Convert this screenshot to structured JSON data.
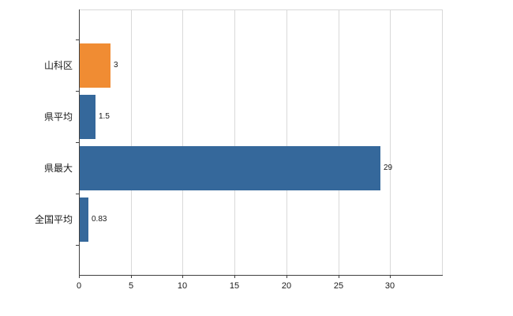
{
  "chart_data": {
    "type": "bar",
    "orientation": "horizontal",
    "title": "",
    "categories": [
      "山科区",
      "県平均",
      "県最大",
      "全国平均"
    ],
    "values": [
      3,
      1.5,
      29,
      0.83
    ],
    "value_labels": [
      "3",
      "1.5",
      "29",
      "0.83"
    ],
    "series_colors": [
      "#F08C33",
      "#35689B",
      "#35689B",
      "#35689B"
    ],
    "xlim": [
      0,
      35
    ],
    "xticks": [
      0,
      5,
      10,
      15,
      20,
      25,
      30
    ],
    "xtick_labels": [
      "0",
      "5",
      "10",
      "15",
      "20",
      "25",
      "30"
    ],
    "grid": true,
    "legend": false
  },
  "colors": {
    "bar_blue": "#35689B",
    "bar_orange": "#F08C33",
    "gridline": "#D9D9D9",
    "plot_border": "#D9D9D9",
    "axis": "#404040",
    "text": "#1a1a1a",
    "background": "#FFFFFF"
  }
}
